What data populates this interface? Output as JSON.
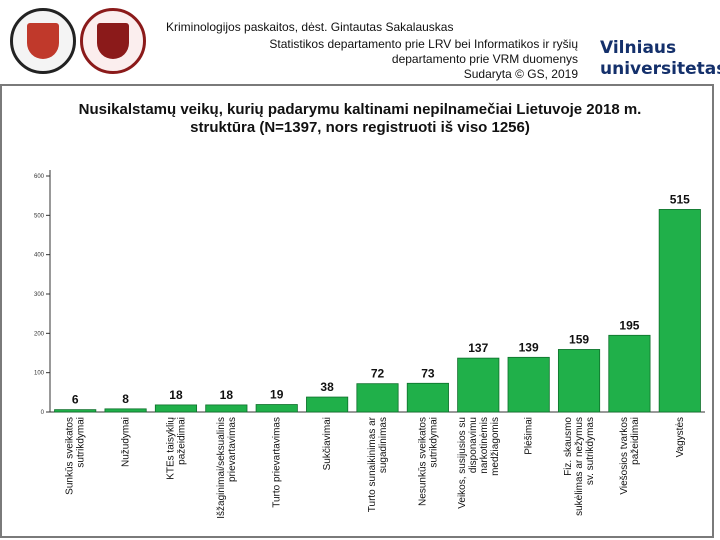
{
  "header": {
    "line1": "Kriminologijos paskaitos, dėst. Gintautas Sakalauskas",
    "line2": "Statistikos departamento prie LRV bei Informatikos ir ryšių",
    "line3": "departamento prie VRM duomenys",
    "line4": "Sudaryta © GS, 2019",
    "brand_line1": "Vilniaus",
    "brand_line2": "universitetas"
  },
  "colors": {
    "bar": "#20b04a",
    "bar_stroke": "#0d6f2a",
    "brand": "#14306b"
  },
  "chart_data": {
    "type": "bar",
    "title_line1": "Nusikalstamų veikų, kurių padarymu kaltinami nepilnamečiai Lietuvoje 2018 m.",
    "title_line2": "struktūra (N=1397, nors registruoti iš viso 1256)",
    "categories": [
      [
        "Sunkūs sveikatos",
        "sutrikdymai"
      ],
      [
        "Nužudymai"
      ],
      [
        "KTEs taisyklių",
        "pažeidimai"
      ],
      [
        "Išžaginimai/seksualinis",
        "prievartavimas"
      ],
      [
        "Turto prievartavimas"
      ],
      [
        "Sukčiavimai"
      ],
      [
        "Turto sunaikinimas ar",
        "sugadinimas"
      ],
      [
        "Nesunkūs sveikatos",
        "sutrikdymai"
      ],
      [
        "Veikos, susijusios su",
        "disponavimu",
        "narkotinėmis",
        "medžiagomis"
      ],
      [
        "Plėšimai"
      ],
      [
        "Fiz. skausmo",
        "sukėlimas ar nežymus",
        "sv. sutrikdymas"
      ],
      [
        "Viešosios tvarkos",
        "pažeidimai"
      ],
      [
        "Vagystės"
      ]
    ],
    "values": [
      6,
      8,
      18,
      18,
      19,
      38,
      72,
      73,
      137,
      139,
      159,
      195,
      515
    ],
    "value_labels": [
      "6",
      "8",
      "18",
      "18",
      "19",
      "38",
      "72",
      "73",
      "137",
      "139",
      "159",
      "195",
      "515"
    ],
    "ylim": [
      0,
      600
    ],
    "yticks": [
      0,
      100,
      200,
      300,
      400,
      500,
      600
    ],
    "ytick_labels": [
      "0",
      "100",
      "200",
      "300",
      "400",
      "500",
      "600"
    ],
    "xlabel": "",
    "ylabel": "",
    "grid": false,
    "legend": "none"
  }
}
